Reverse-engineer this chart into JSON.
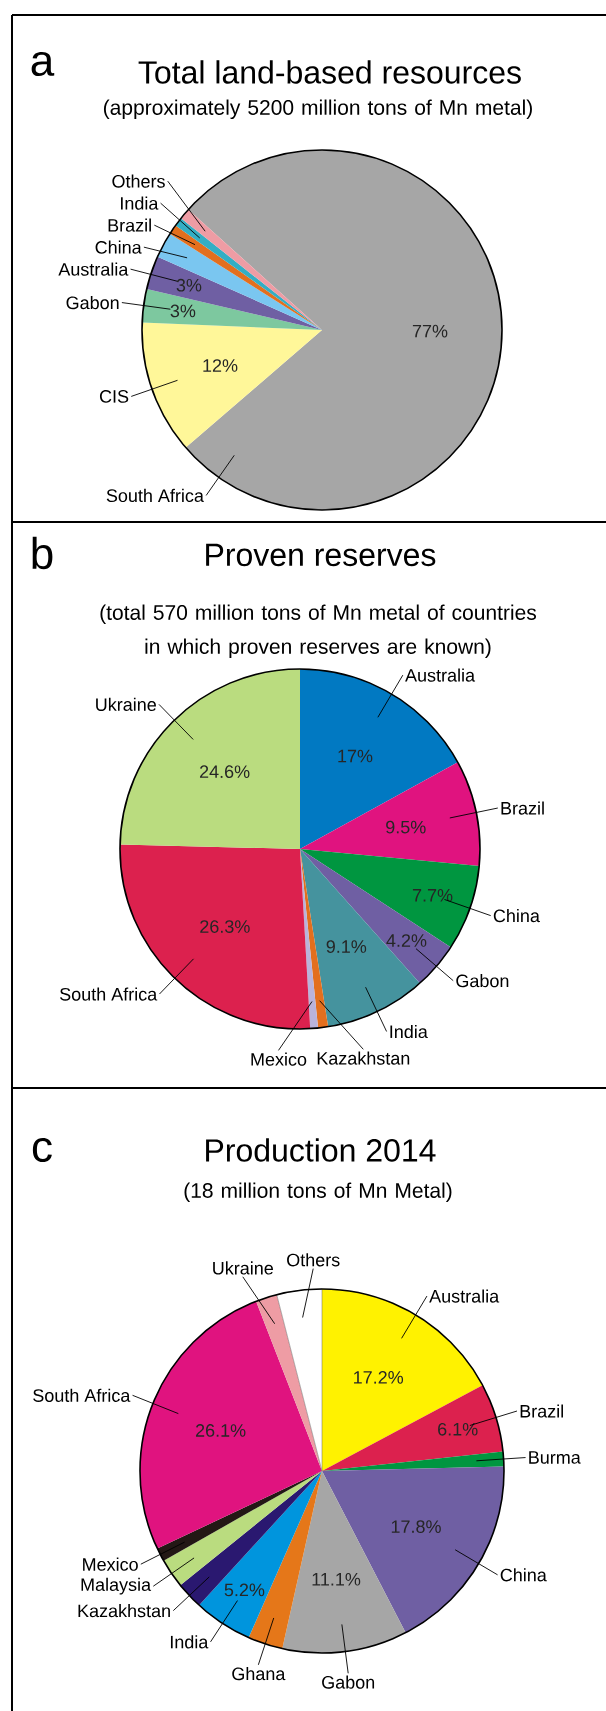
{
  "chart_data": [
    {
      "type": "pie",
      "title": "Total land-based resources",
      "subtitle": "(approximately 5200 million tons of Mn metal)",
      "annotations": [
        "a"
      ],
      "categories": [
        "South Africa",
        "CIS",
        "Gabon",
        "Australia",
        "China",
        "Brazil",
        "India",
        "Others"
      ],
      "values": [
        77,
        12,
        3,
        3,
        2.3,
        0.9,
        0.8,
        1
      ],
      "colors": [
        "#a6a6a6",
        "#fff799",
        "#7dc89f",
        "#6f5fa3",
        "#7ac6f0",
        "#e36f1e",
        "#33aec4",
        "#ee9ca4"
      ],
      "value_labels": [
        "77%",
        "12%",
        "3%",
        "3%",
        null,
        null,
        null,
        null
      ]
    },
    {
      "type": "pie",
      "title": "Proven reserves",
      "subtitle": "(total 570 million tons of Mn metal of countries in which proven reserves are known)",
      "annotations": [
        "b"
      ],
      "categories": [
        "Australia",
        "Brazil",
        "China",
        "Gabon",
        "India",
        "Kazakhstan",
        "Mexico",
        "South Africa",
        "Ukraine"
      ],
      "values": [
        17,
        9.5,
        7.7,
        4.2,
        9.1,
        0.9,
        0.7,
        26.3,
        24.6
      ],
      "colors": [
        "#0179c2",
        "#e0137f",
        "#009640",
        "#6f5fa3",
        "#45939e",
        "#e36f1e",
        "#b9b3db",
        "#dc214e",
        "#badc7f"
      ],
      "value_labels": [
        "17%",
        "9.5%",
        "7.7%",
        "4.2%",
        "9.1%",
        null,
        null,
        "26.3%",
        "24.6%"
      ]
    },
    {
      "type": "pie",
      "title": "Production 2014",
      "subtitle": "(18 million tons of Mn Metal)",
      "annotations": [
        "c"
      ],
      "categories": [
        "Australia",
        "Brazil",
        "Burma",
        "China",
        "Gabon",
        "Ghana",
        "India",
        "Kazakhstan",
        "Malaysia",
        "Mexico",
        "South Africa",
        "Ukraine",
        "Others"
      ],
      "values": [
        17.2,
        6.1,
        1.3,
        17.8,
        11.1,
        3.1,
        5.2,
        2.4,
        2.6,
        1.2,
        26.1,
        1.9,
        4.0
      ],
      "colors": [
        "#fff200",
        "#dc214e",
        "#009640",
        "#6f5fa3",
        "#a6a6a6",
        "#e57719",
        "#0095dd",
        "#2a1870",
        "#badc7f",
        "#231815",
        "#e0137f",
        "#ee9ca4",
        "#ffffff"
      ],
      "value_labels": [
        "17.2%",
        "6.1%",
        null,
        "17.8%",
        "11.1%",
        null,
        "5.2%",
        null,
        null,
        null,
        "26.1%",
        null,
        null
      ]
    }
  ]
}
